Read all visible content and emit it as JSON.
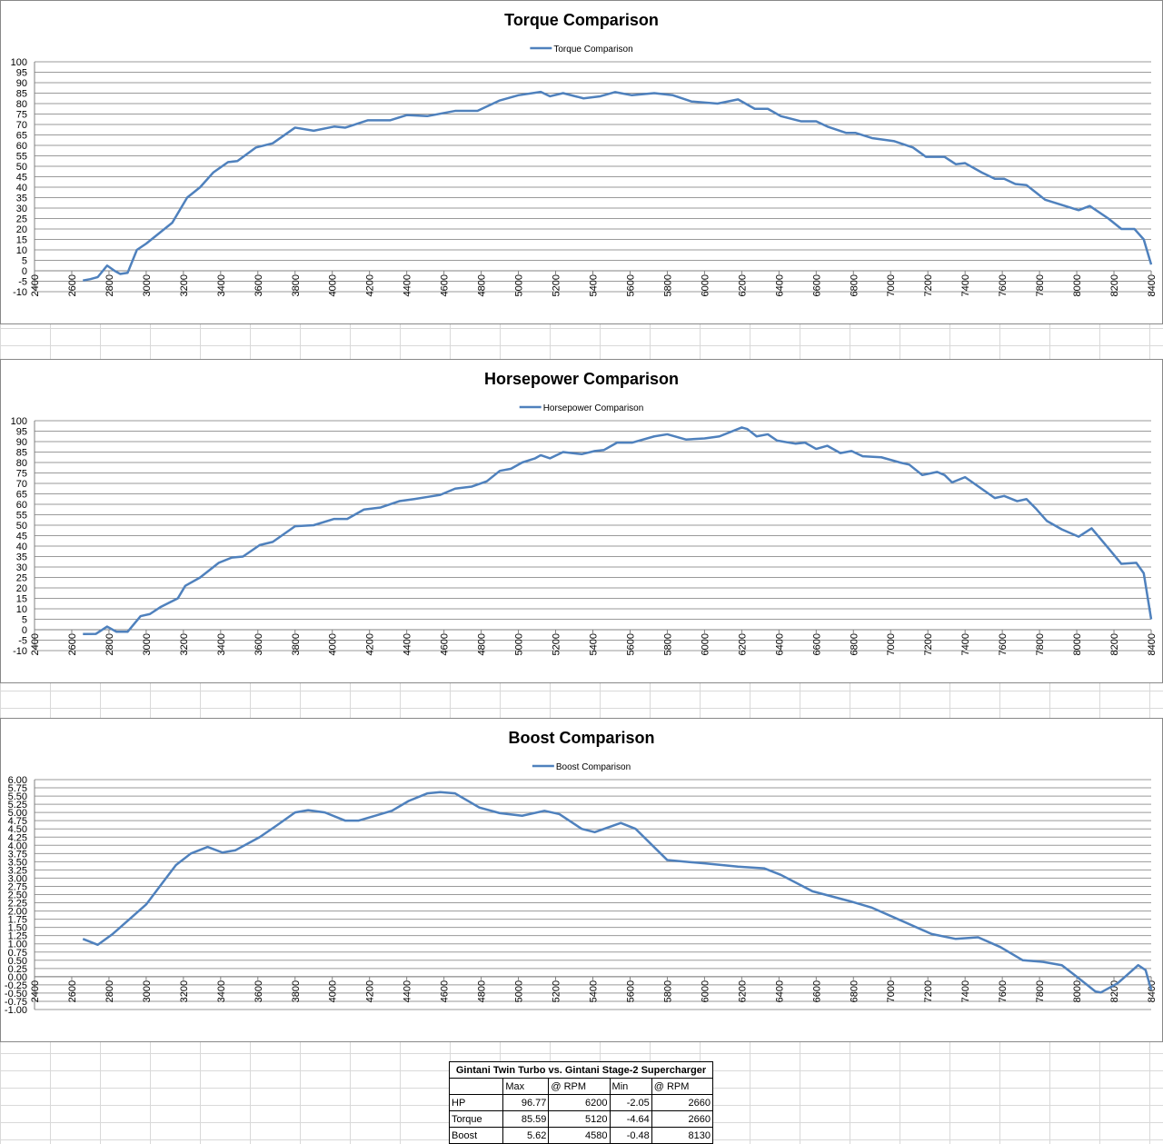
{
  "chart_data": [
    {
      "type": "line",
      "title": "Torque Comparison",
      "legend": "top",
      "grid": true,
      "x": [
        2660,
        2700,
        2740,
        2790,
        2830,
        2860,
        2900,
        2950,
        3000,
        3070,
        3140,
        3220,
        3290,
        3360,
        3440,
        3490,
        3590,
        3680,
        3800,
        3900,
        4010,
        4070,
        4190,
        4310,
        4400,
        4510,
        4660,
        4780,
        4900,
        5000,
        5120,
        5170,
        5240,
        5350,
        5440,
        5520,
        5610,
        5730,
        5830,
        5930,
        6070,
        6180,
        6270,
        6340,
        6410,
        6520,
        6600,
        6660,
        6760,
        6810,
        6900,
        7020,
        7120,
        7190,
        7290,
        7350,
        7400,
        7490,
        7560,
        7610,
        7670,
        7730,
        7830,
        7920,
        8010,
        8070,
        8170,
        8240,
        8310,
        8360,
        8400
      ],
      "series": [
        {
          "name": "Torque Comparison",
          "color": "#4f81bd",
          "values": [
            -4.64,
            -4,
            -3,
            2.5,
            0,
            -1.5,
            -1,
            10,
            13,
            18,
            23,
            35,
            40,
            47,
            52,
            52.5,
            59,
            61,
            68.5,
            67,
            69,
            68.5,
            72,
            72,
            74.5,
            74,
            76.5,
            76.5,
            81.5,
            84,
            85.59,
            83.5,
            85,
            82.5,
            83.5,
            85.5,
            84,
            85,
            84,
            81,
            80,
            82,
            77.5,
            77.5,
            74,
            71.5,
            71.5,
            69,
            66,
            66,
            63.5,
            62,
            59,
            54.5,
            54.5,
            51,
            51.5,
            47,
            44,
            44,
            41.5,
            41,
            34,
            31.5,
            29,
            31,
            25,
            20,
            20,
            15,
            3
          ]
        }
      ],
      "xlim": [
        2400,
        8400
      ],
      "xticks": [
        2400,
        2600,
        2800,
        3000,
        3200,
        3400,
        3600,
        3800,
        4000,
        4200,
        4400,
        4600,
        4800,
        5000,
        5200,
        5400,
        5600,
        5800,
        6000,
        6200,
        6400,
        6600,
        6800,
        7000,
        7200,
        7400,
        7600,
        7800,
        8000,
        8200,
        8400
      ],
      "ylim": [
        -10,
        100
      ],
      "yticks": [
        -10,
        -5,
        0,
        5,
        10,
        15,
        20,
        25,
        30,
        35,
        40,
        45,
        50,
        55,
        60,
        65,
        70,
        75,
        80,
        85,
        90,
        95,
        100
      ]
    },
    {
      "type": "line",
      "title": "Horsepower Comparison",
      "legend": "top",
      "grid": true,
      "x": [
        2660,
        2730,
        2790,
        2840,
        2900,
        2970,
        3020,
        3080,
        3170,
        3210,
        3290,
        3390,
        3460,
        3520,
        3610,
        3680,
        3800,
        3900,
        4010,
        4080,
        4170,
        4260,
        4360,
        4440,
        4510,
        4580,
        4660,
        4750,
        4830,
        4900,
        4960,
        5020,
        5090,
        5120,
        5170,
        5240,
        5340,
        5410,
        5460,
        5530,
        5610,
        5730,
        5800,
        5900,
        6000,
        6080,
        6200,
        6230,
        6280,
        6340,
        6390,
        6490,
        6540,
        6600,
        6660,
        6730,
        6790,
        6850,
        6950,
        7050,
        7100,
        7170,
        7250,
        7290,
        7330,
        7400,
        7480,
        7560,
        7610,
        7680,
        7730,
        7780,
        7840,
        7920,
        8010,
        8080,
        8170,
        8240,
        8320,
        8360,
        8400
      ],
      "series": [
        {
          "name": "Horsepower Comparison",
          "color": "#4f81bd",
          "values": [
            -2.05,
            -2,
            1.5,
            -1,
            -1,
            6.5,
            7.5,
            11,
            15,
            21,
            25,
            32,
            34.5,
            35,
            40.5,
            42,
            49.5,
            50,
            53,
            53,
            57.5,
            58.5,
            61.5,
            62.5,
            63.5,
            64.5,
            67.5,
            68.5,
            71,
            76,
            77,
            80,
            82,
            83.5,
            82,
            85,
            84,
            85.5,
            86,
            89.5,
            89.5,
            92.5,
            93.5,
            91,
            91.5,
            92.5,
            96.77,
            96,
            92.5,
            93.5,
            90.5,
            89,
            89.5,
            86.5,
            88,
            84.5,
            85.5,
            83,
            82.5,
            80,
            79,
            74,
            75.5,
            74,
            70.5,
            73,
            68,
            63,
            64,
            61.5,
            62.5,
            58,
            52,
            48,
            44.5,
            48.5,
            39,
            31.5,
            32,
            27,
            5
          ]
        }
      ],
      "xlim": [
        2400,
        8400
      ],
      "xticks": [
        2400,
        2600,
        2800,
        3000,
        3200,
        3400,
        3600,
        3800,
        4000,
        4200,
        4400,
        4600,
        4800,
        5000,
        5200,
        5400,
        5600,
        5800,
        6000,
        6200,
        6400,
        6600,
        6800,
        7000,
        7200,
        7400,
        7600,
        7800,
        8000,
        8200,
        8400
      ],
      "ylim": [
        -10,
        100
      ],
      "yticks": [
        -10,
        -5,
        0,
        5,
        10,
        15,
        20,
        25,
        30,
        35,
        40,
        45,
        50,
        55,
        60,
        65,
        70,
        75,
        80,
        85,
        90,
        95,
        100
      ]
    },
    {
      "type": "line",
      "title": "Boost Comparison",
      "legend": "top",
      "grid": true,
      "x": [
        2660,
        2740,
        2820,
        2900,
        3000,
        3080,
        3160,
        3240,
        3330,
        3410,
        3480,
        3610,
        3700,
        3800,
        3870,
        3960,
        4070,
        4140,
        4260,
        4320,
        4410,
        4510,
        4580,
        4660,
        4790,
        4900,
        5020,
        5140,
        5220,
        5340,
        5410,
        5550,
        5630,
        5800,
        6000,
        6180,
        6320,
        6410,
        6580,
        6780,
        6900,
        7020,
        7220,
        7350,
        7470,
        7590,
        7710,
        7820,
        7920,
        8000,
        8100,
        8130,
        8220,
        8270,
        8330,
        8370,
        8400
      ],
      "series": [
        {
          "name": "Boost Comparison",
          "color": "#4f81bd",
          "values": [
            1.15,
            0.97,
            1.3,
            1.7,
            2.2,
            2.8,
            3.4,
            3.75,
            3.95,
            3.78,
            3.85,
            4.25,
            4.6,
            5,
            5.07,
            5,
            4.75,
            4.75,
            4.95,
            5.05,
            5.35,
            5.58,
            5.62,
            5.58,
            5.15,
            4.98,
            4.9,
            5.05,
            4.95,
            4.5,
            4.4,
            4.68,
            4.5,
            3.55,
            3.45,
            3.35,
            3.3,
            3.1,
            2.6,
            2.3,
            2.1,
            1.8,
            1.3,
            1.15,
            1.2,
            0.9,
            0.5,
            0.45,
            0.35,
            0,
            -0.45,
            -0.48,
            -0.2,
            0.05,
            0.35,
            0.2,
            -0.4
          ]
        }
      ],
      "xlim": [
        2400,
        8400
      ],
      "xticks": [
        2400,
        2600,
        2800,
        3000,
        3200,
        3400,
        3600,
        3800,
        4000,
        4200,
        4400,
        4600,
        4800,
        5000,
        5200,
        5400,
        5600,
        5800,
        6000,
        6200,
        6400,
        6600,
        6800,
        7000,
        7200,
        7400,
        7600,
        7800,
        8000,
        8200,
        8400
      ],
      "ylim": [
        -1,
        6
      ],
      "yticks": [
        {
          "value": -1,
          "label": "-1.00"
        },
        {
          "value": -0.75,
          "label": "-0.75"
        },
        {
          "value": -0.5,
          "label": "-0.50"
        },
        {
          "value": -0.25,
          "label": "-0.25"
        },
        {
          "value": 0,
          "label": "0.00"
        },
        {
          "value": 0.25,
          "label": "0.25"
        },
        {
          "value": 0.5,
          "label": "0.50"
        },
        {
          "value": 0.75,
          "label": "0.75"
        },
        {
          "value": 1,
          "label": "1.00"
        },
        {
          "value": 1.25,
          "label": "1.25"
        },
        {
          "value": 1.5,
          "label": "1.50"
        },
        {
          "value": 1.75,
          "label": "1.75"
        },
        {
          "value": 2,
          "label": "2.00"
        },
        {
          "value": 2.25,
          "label": "2.25"
        },
        {
          "value": 2.5,
          "label": "2.50"
        },
        {
          "value": 2.75,
          "label": "2.75"
        },
        {
          "value": 3,
          "label": "3.00"
        },
        {
          "value": 3.25,
          "label": "3.25"
        },
        {
          "value": 3.5,
          "label": "3.50"
        },
        {
          "value": 3.75,
          "label": "3.75"
        },
        {
          "value": 4,
          "label": "4.00"
        },
        {
          "value": 4.25,
          "label": "4.25"
        },
        {
          "value": 4.5,
          "label": "4.50"
        },
        {
          "value": 4.75,
          "label": "4.75"
        },
        {
          "value": 5,
          "label": "5.00"
        },
        {
          "value": 5.25,
          "label": "5.25"
        },
        {
          "value": 5.5,
          "label": "5.50"
        },
        {
          "value": 5.75,
          "label": "5.75"
        },
        {
          "value": 6,
          "label": "6.00"
        }
      ]
    }
  ],
  "table": {
    "title": "Gintani Twin Turbo vs. Gintani Stage-2 Supercharger",
    "columns": [
      "Max",
      "@ RPM",
      "Min",
      "@ RPM"
    ],
    "rows": [
      [
        "HP",
        96.77,
        6200,
        -2.05,
        2660
      ],
      [
        "Torque",
        85.59,
        5120,
        -4.64,
        2660
      ],
      [
        "Boost",
        5.62,
        4580,
        -0.48,
        8130
      ]
    ]
  }
}
